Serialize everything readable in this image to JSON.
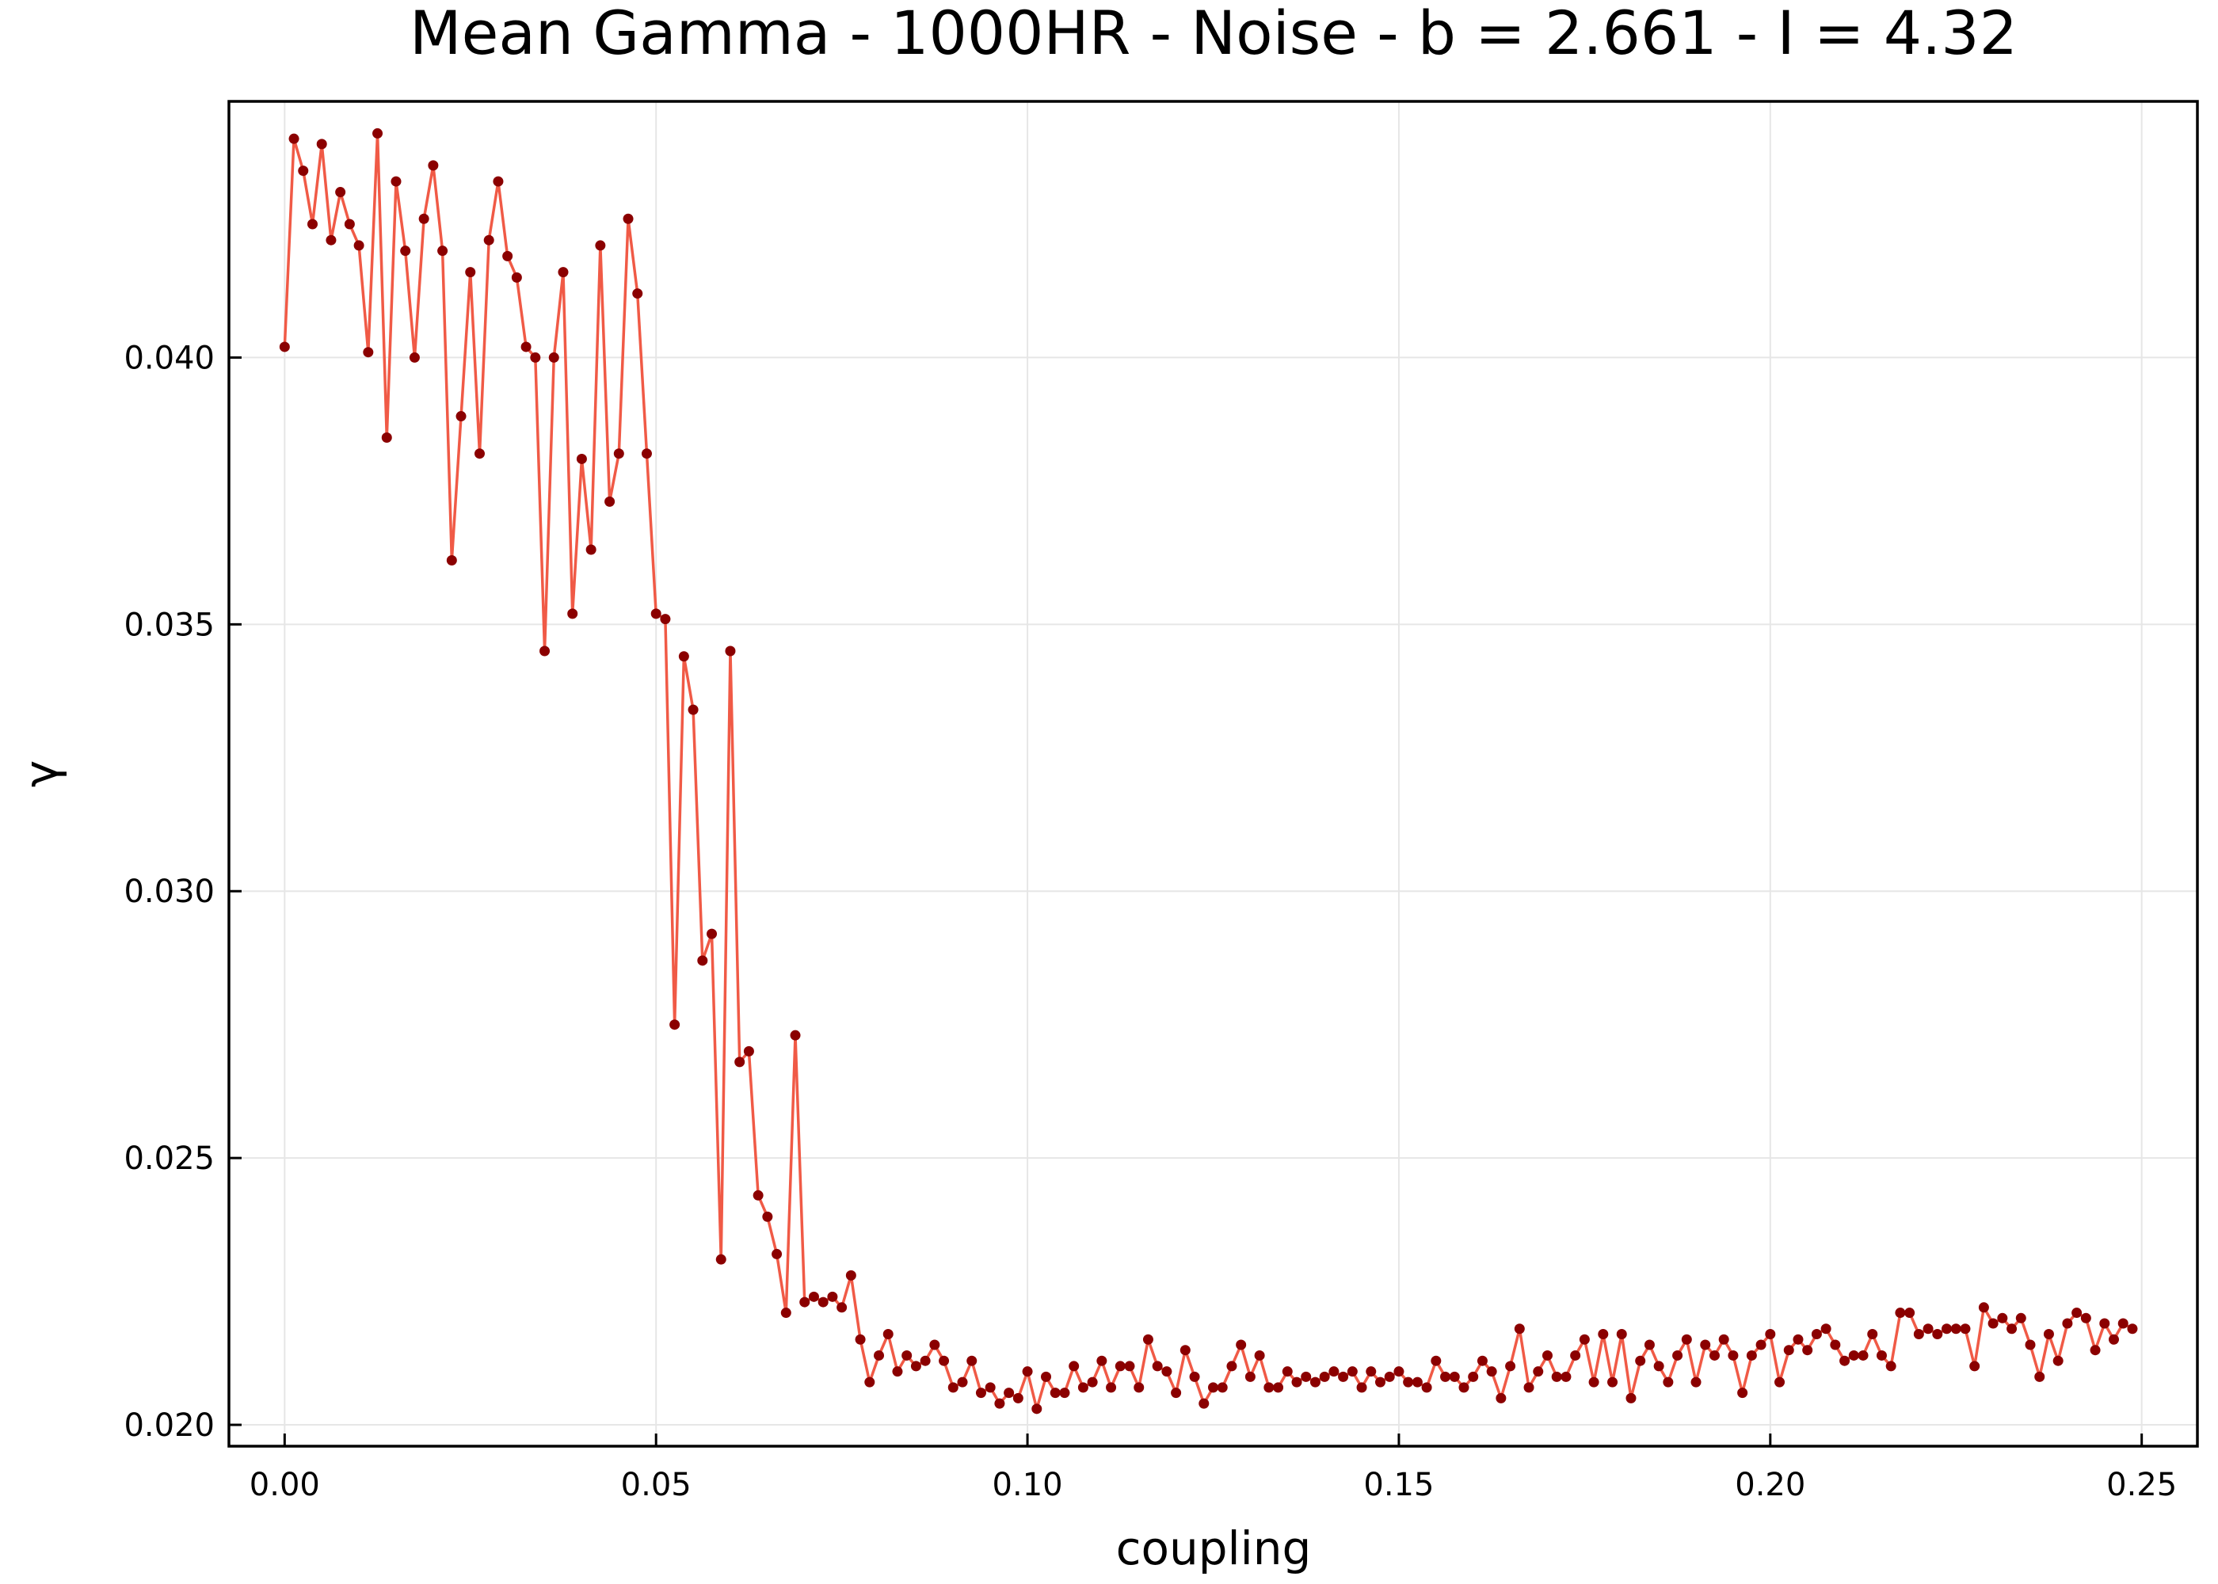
{
  "chart_data": {
    "type": "line",
    "title": "Mean Gamma - 1000HR - Noise - b = 2.661 - I = 4.32",
    "xlabel": "coupling",
    "ylabel": "γ",
    "xlim": [
      -0.0075,
      0.2575
    ],
    "ylim": [
      0.0196,
      0.0448
    ],
    "xticks": [
      0.0,
      0.05,
      0.1,
      0.15,
      0.2,
      0.25
    ],
    "xtick_labels": [
      "0.00",
      "0.05",
      "0.10",
      "0.15",
      "0.20",
      "0.25"
    ],
    "yticks": [
      0.02,
      0.025,
      0.03,
      0.035,
      0.04
    ],
    "ytick_labels": [
      "0.020",
      "0.025",
      "0.030",
      "0.035",
      "0.040"
    ],
    "grid": true,
    "legend": "none",
    "line_color": "#f05a46",
    "marker_color": "#8b0000",
    "x_start": 0.0,
    "x_step": 0.00125,
    "y": [
      0.0402,
      0.0441,
      0.0435,
      0.0425,
      0.044,
      0.0422,
      0.0431,
      0.0425,
      0.0421,
      0.0401,
      0.0442,
      0.0385,
      0.0433,
      0.042,
      0.04,
      0.0426,
      0.0436,
      0.042,
      0.0362,
      0.0389,
      0.0416,
      0.0382,
      0.0422,
      0.0433,
      0.0419,
      0.0415,
      0.0402,
      0.04,
      0.0345,
      0.04,
      0.0416,
      0.0352,
      0.0381,
      0.0364,
      0.0421,
      0.0373,
      0.0382,
      0.0426,
      0.0412,
      0.0382,
      0.0352,
      0.0351,
      0.0275,
      0.0344,
      0.0334,
      0.0287,
      0.0292,
      0.0231,
      0.0345,
      0.0268,
      0.027,
      0.0243,
      0.0239,
      0.0232,
      0.0221,
      0.0273,
      0.0223,
      0.0224,
      0.0223,
      0.0224,
      0.0222,
      0.0228,
      0.0216,
      0.0208,
      0.0213,
      0.0217,
      0.021,
      0.0213,
      0.0211,
      0.0212,
      0.0215,
      0.0212,
      0.0207,
      0.0208,
      0.0212,
      0.0206,
      0.0207,
      0.0204,
      0.0206,
      0.0205,
      0.021,
      0.0203,
      0.0209,
      0.0206,
      0.0206,
      0.0211,
      0.0207,
      0.0208,
      0.0212,
      0.0207,
      0.0211,
      0.0211,
      0.0207,
      0.0216,
      0.0211,
      0.021,
      0.0206,
      0.0214,
      0.0209,
      0.0204,
      0.0207,
      0.0207,
      0.0211,
      0.0215,
      0.0209,
      0.0213,
      0.0207,
      0.0207,
      0.021,
      0.0208,
      0.0209,
      0.0208,
      0.0209,
      0.021,
      0.0209,
      0.021,
      0.0207,
      0.021,
      0.0208,
      0.0209,
      0.021,
      0.0208,
      0.0208,
      0.0207,
      0.0212,
      0.0209,
      0.0209,
      0.0207,
      0.0209,
      0.0212,
      0.021,
      0.0205,
      0.0211,
      0.0218,
      0.0207,
      0.021,
      0.0213,
      0.0209,
      0.0209,
      0.0213,
      0.0216,
      0.0208,
      0.0217,
      0.0208,
      0.0217,
      0.0205,
      0.0212,
      0.0215,
      0.0211,
      0.0208,
      0.0213,
      0.0216,
      0.0208,
      0.0215,
      0.0213,
      0.0216,
      0.0213,
      0.0206,
      0.0213,
      0.0215,
      0.0217,
      0.0208,
      0.0214,
      0.0216,
      0.0214,
      0.0217,
      0.0218,
      0.0215,
      0.0212,
      0.0213,
      0.0213,
      0.0217,
      0.0213,
      0.0211,
      0.0221,
      0.0221,
      0.0217,
      0.0218,
      0.0217,
      0.0218,
      0.0218,
      0.0218,
      0.0211,
      0.0222,
      0.0219,
      0.022,
      0.0218,
      0.022,
      0.0215,
      0.0209,
      0.0217,
      0.0212,
      0.0219,
      0.0221,
      0.022,
      0.0214,
      0.0219,
      0.0216,
      0.0219,
      0.0218
    ]
  }
}
